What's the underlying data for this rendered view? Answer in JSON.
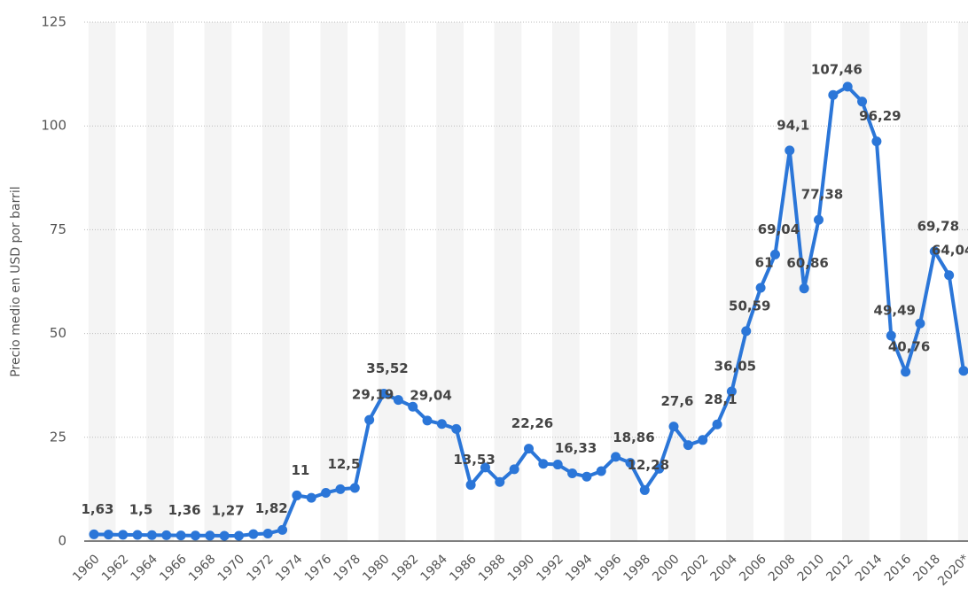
{
  "chart_data": {
    "type": "line",
    "y_label": "Precio medio en USD por barril",
    "categories": [
      "1960",
      null,
      "1962",
      null,
      "1964",
      null,
      "1966",
      null,
      "1968",
      null,
      "1970",
      null,
      "1972",
      null,
      "1974",
      null,
      "1976",
      null,
      "1978",
      null,
      "1980",
      null,
      "1982",
      null,
      "1984",
      null,
      "1986",
      null,
      "1988",
      null,
      "1990",
      null,
      "1992",
      null,
      "1994",
      null,
      "1996",
      null,
      "1998",
      null,
      "2000",
      null,
      "2002",
      null,
      "2004",
      null,
      "2006",
      null,
      "2008",
      null,
      "2010",
      null,
      "2012",
      null,
      "2014",
      null,
      "2016",
      null,
      "2018",
      null,
      "2020*"
    ],
    "series": [
      {
        "name": "Precio",
        "color": "#2b76d8",
        "values": [
          1.63,
          1.57,
          1.52,
          1.5,
          1.45,
          1.42,
          1.36,
          1.33,
          1.32,
          1.27,
          1.27,
          1.67,
          1.82,
          2.7,
          11,
          10.43,
          11.63,
          12.5,
          12.79,
          29.19,
          35.52,
          34,
          32.38,
          29.04,
          28.2,
          27.01,
          13.53,
          17.73,
          14.24,
          17.31,
          22.26,
          18.62,
          18.44,
          16.33,
          15.53,
          16.86,
          20.29,
          18.86,
          12.28,
          17.44,
          27.6,
          23.12,
          24.36,
          28.1,
          36.05,
          50.59,
          61,
          69.04,
          94.1,
          60.86,
          77.38,
          107.46,
          109.45,
          105.87,
          96.29,
          49.49,
          40.76,
          52.43,
          69.78,
          64.04,
          41
        ],
        "value_labels": [
          "1,63",
          null,
          null,
          "1,5",
          null,
          null,
          "1,36",
          null,
          null,
          "1,27",
          null,
          null,
          "1,82",
          null,
          "11",
          null,
          null,
          "12,5",
          null,
          "29,19",
          "35,52",
          null,
          null,
          "29,04",
          null,
          null,
          "13,53",
          null,
          null,
          null,
          "22,26",
          null,
          null,
          "16,33",
          null,
          null,
          null,
          "18,86",
          "12,28",
          null,
          "27,6",
          null,
          null,
          "28,1",
          "36,05",
          "50,59",
          "61",
          "69,04",
          "94,1",
          "60,86",
          "77,38",
          "107,46",
          null,
          null,
          "96,29",
          "49,49",
          "40,76",
          null,
          "69,78",
          "64,04",
          null
        ]
      }
    ],
    "ylim": [
      0,
      125
    ],
    "yticks": [
      0,
      25,
      50,
      75,
      100,
      125
    ],
    "grid": true
  }
}
